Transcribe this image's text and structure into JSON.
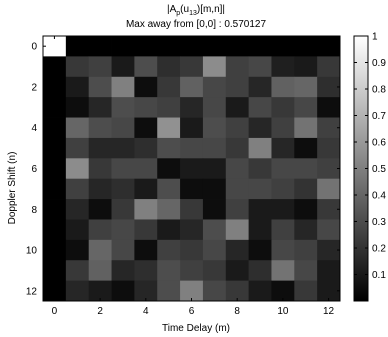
{
  "chart_data": {
    "type": "heatmap",
    "title_lines": [
      "|A_p(u_13)[m,n]|",
      "Max away from [0,0] : 0.570127"
    ],
    "xlabel": "Time Delay (m)",
    "ylabel": "Doppler Shift (n)",
    "x_ticks": [
      0,
      2,
      4,
      6,
      8,
      10,
      12
    ],
    "y_ticks": [
      0,
      2,
      4,
      6,
      8,
      10,
      12
    ],
    "x_range": [
      0,
      12
    ],
    "y_range": [
      0,
      12
    ],
    "y_direction": "down",
    "colormap": "gray",
    "colorbar": {
      "position": "right",
      "range": [
        0,
        1
      ],
      "ticks": [
        {
          "value": 0.1,
          "label": "0.1"
        },
        {
          "value": 0.2,
          "label": "0.2"
        },
        {
          "value": 0.3,
          "label": "0.3"
        },
        {
          "value": 0.4,
          "label": "0.4"
        },
        {
          "value": 0.5,
          "label": "0.5"
        },
        {
          "value": 0.6,
          "label": "0.6"
        },
        {
          "value": 0.7,
          "label": "0.7"
        },
        {
          "value": 0.8,
          "label": "0.8"
        },
        {
          "value": 0.9,
          "label": "0.9"
        },
        {
          "value": 1.0,
          "label": "1"
        }
      ]
    },
    "values": [
      [
        1.0,
        0.0,
        0.0,
        0.0,
        0.0,
        0.0,
        0.0,
        0.0,
        0.0,
        0.0,
        0.0,
        0.0,
        0.0
      ],
      [
        0.0,
        0.22,
        0.25,
        0.1,
        0.3,
        0.18,
        0.22,
        0.55,
        0.25,
        0.28,
        0.12,
        0.1,
        0.22
      ],
      [
        0.0,
        0.1,
        0.3,
        0.5,
        0.05,
        0.22,
        0.38,
        0.28,
        0.25,
        0.15,
        0.38,
        0.4,
        0.18
      ],
      [
        0.0,
        0.05,
        0.15,
        0.3,
        0.28,
        0.25,
        0.15,
        0.28,
        0.1,
        0.28,
        0.22,
        0.28,
        0.05
      ],
      [
        0.0,
        0.4,
        0.3,
        0.28,
        0.05,
        0.57,
        0.1,
        0.3,
        0.25,
        0.15,
        0.25,
        0.45,
        0.25
      ],
      [
        0.0,
        0.25,
        0.15,
        0.15,
        0.18,
        0.3,
        0.28,
        0.28,
        0.22,
        0.5,
        0.15,
        0.05,
        0.22
      ],
      [
        0.0,
        0.55,
        0.22,
        0.28,
        0.28,
        0.05,
        0.1,
        0.1,
        0.28,
        0.22,
        0.28,
        0.28,
        0.25
      ],
      [
        0.0,
        0.25,
        0.15,
        0.18,
        0.1,
        0.3,
        0.05,
        0.05,
        0.28,
        0.28,
        0.25,
        0.2,
        0.45
      ],
      [
        0.0,
        0.15,
        0.05,
        0.22,
        0.5,
        0.4,
        0.22,
        0.05,
        0.25,
        0.1,
        0.1,
        0.05,
        0.22
      ],
      [
        0.0,
        0.1,
        0.25,
        0.28,
        0.22,
        0.1,
        0.15,
        0.3,
        0.5,
        0.1,
        0.25,
        0.15,
        0.28
      ],
      [
        0.0,
        0.05,
        0.4,
        0.28,
        0.05,
        0.25,
        0.22,
        0.28,
        0.15,
        0.05,
        0.28,
        0.25,
        0.15
      ],
      [
        0.0,
        0.22,
        0.38,
        0.15,
        0.18,
        0.3,
        0.25,
        0.22,
        0.1,
        0.18,
        0.45,
        0.28,
        0.1
      ],
      [
        0.0,
        0.15,
        0.1,
        0.05,
        0.15,
        0.3,
        0.5,
        0.28,
        0.22,
        0.1,
        0.05,
        0.22,
        0.1
      ]
    ]
  }
}
